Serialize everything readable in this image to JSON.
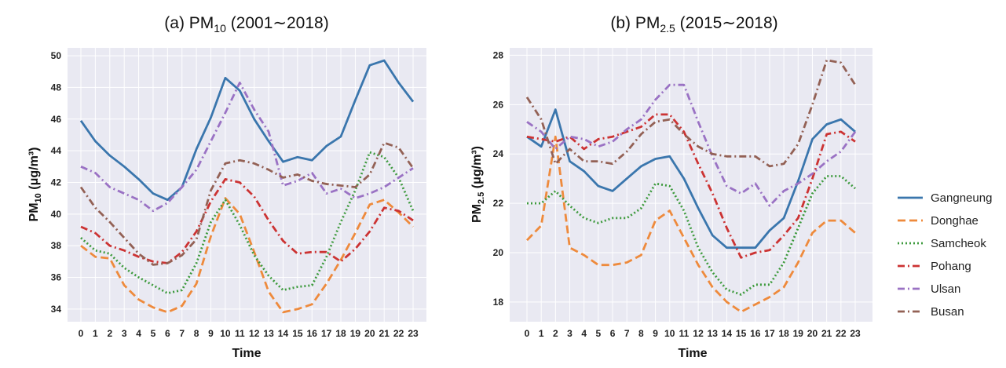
{
  "colors": {
    "Gangneung": "#3a76ad",
    "Donghae": "#ee8a3c",
    "Samcheok": "#3d9a3d",
    "Pohang": "#cc3333",
    "Ulsan": "#9a72c4",
    "Busan": "#936155",
    "plot_background": "#e9e9f2",
    "grid": "#ffffff"
  },
  "legend": {
    "placement": "right",
    "entries": [
      "Gangneung",
      "Donghae",
      "Samcheok",
      "Pohang",
      "Ulsan",
      "Busan"
    ],
    "line_styles": {
      "Gangneung": "solid",
      "Donghae": "dashed",
      "Samcheok": "dotted",
      "Pohang": "dashdot",
      "Ulsan": "dashdot",
      "Busan": "dashdot"
    }
  },
  "chart_data": [
    {
      "type": "line",
      "title_prefix": "(a) PM",
      "title_sub": "10",
      "title_suffix": " (2001∼2018)",
      "xlabel": "Time",
      "ylabel_prefix": "PM",
      "ylabel_sub": "10",
      "ylabel_suffix": " (μg/m³)",
      "x": [
        0,
        1,
        2,
        3,
        4,
        5,
        6,
        7,
        8,
        9,
        10,
        11,
        12,
        13,
        14,
        15,
        16,
        17,
        18,
        19,
        20,
        21,
        22,
        23
      ],
      "ylim": [
        33.2,
        50.5
      ],
      "yticks": [
        34,
        36,
        38,
        40,
        42,
        44,
        46,
        48,
        50
      ],
      "grid": true,
      "series": [
        {
          "name": "Gangneung",
          "values": [
            45.9,
            44.6,
            43.7,
            43.0,
            42.2,
            41.3,
            40.9,
            41.7,
            44.1,
            46.1,
            48.6,
            47.8,
            46.0,
            44.6,
            43.3,
            43.6,
            43.4,
            44.3,
            44.9,
            47.2,
            49.4,
            49.7,
            48.3,
            47.1
          ]
        },
        {
          "name": "Donghae",
          "values": [
            38.0,
            37.3,
            37.2,
            35.5,
            34.6,
            34.1,
            33.8,
            34.2,
            35.6,
            38.6,
            41.0,
            40.0,
            37.6,
            35.1,
            33.8,
            34.0,
            34.3,
            35.6,
            37.1,
            38.8,
            40.6,
            40.9,
            40.1,
            39.2
          ]
        },
        {
          "name": "Samcheok",
          "values": [
            38.5,
            37.7,
            37.5,
            36.6,
            36.0,
            35.5,
            35.0,
            35.2,
            36.9,
            39.5,
            40.9,
            39.3,
            37.4,
            36.1,
            35.2,
            35.4,
            35.5,
            37.3,
            39.5,
            41.5,
            43.9,
            43.6,
            42.3,
            40.2
          ]
        },
        {
          "name": "Pohang",
          "values": [
            39.2,
            38.8,
            38.0,
            37.7,
            37.3,
            37.0,
            36.9,
            37.6,
            38.9,
            40.8,
            42.2,
            42.0,
            41.1,
            39.6,
            38.3,
            37.5,
            37.6,
            37.6,
            37.0,
            37.8,
            38.9,
            40.4,
            40.2,
            39.6
          ]
        },
        {
          "name": "Ulsan",
          "values": [
            43.0,
            42.6,
            41.7,
            41.3,
            40.9,
            40.2,
            40.7,
            41.7,
            42.8,
            44.6,
            46.4,
            48.3,
            46.6,
            45.2,
            41.8,
            42.1,
            42.6,
            41.3,
            41.6,
            41.0,
            41.3,
            41.7,
            42.3,
            42.9
          ]
        },
        {
          "name": "Busan",
          "values": [
            41.7,
            40.4,
            39.5,
            38.5,
            37.5,
            36.8,
            36.9,
            37.4,
            38.4,
            41.5,
            43.2,
            43.4,
            43.2,
            42.8,
            42.3,
            42.5,
            42.1,
            41.9,
            41.8,
            41.7,
            42.5,
            44.5,
            44.2,
            42.9
          ]
        }
      ]
    },
    {
      "type": "line",
      "title_prefix": "(b) PM",
      "title_sub": "2.5",
      "title_suffix": " (2015∼2018)",
      "xlabel": "Time",
      "ylabel_prefix": "PM",
      "ylabel_sub": "2.5",
      "ylabel_suffix": " (μg/m³)",
      "x": [
        0,
        1,
        2,
        3,
        4,
        5,
        6,
        7,
        8,
        9,
        10,
        11,
        12,
        13,
        14,
        15,
        16,
        17,
        18,
        19,
        20,
        21,
        22,
        23
      ],
      "ylim": [
        17.2,
        28.3
      ],
      "yticks": [
        18,
        20,
        22,
        24,
        26,
        28
      ],
      "grid": true,
      "series": [
        {
          "name": "Gangneung",
          "values": [
            24.7,
            24.3,
            25.8,
            23.7,
            23.3,
            22.7,
            22.5,
            23.0,
            23.5,
            23.8,
            23.9,
            23.0,
            21.8,
            20.7,
            20.2,
            20.2,
            20.2,
            20.9,
            21.4,
            22.9,
            24.6,
            25.2,
            25.4,
            24.9
          ]
        },
        {
          "name": "Donghae",
          "values": [
            20.5,
            21.1,
            24.7,
            20.2,
            19.9,
            19.5,
            19.5,
            19.6,
            19.9,
            21.3,
            21.7,
            20.6,
            19.5,
            18.6,
            18.0,
            17.6,
            17.9,
            18.2,
            18.6,
            19.6,
            20.8,
            21.3,
            21.3,
            20.8
          ]
        },
        {
          "name": "Samcheok",
          "values": [
            22.0,
            22.0,
            22.5,
            21.9,
            21.4,
            21.2,
            21.4,
            21.4,
            21.8,
            22.8,
            22.7,
            21.7,
            20.2,
            19.2,
            18.5,
            18.3,
            18.7,
            18.7,
            19.6,
            21.0,
            22.4,
            23.1,
            23.1,
            22.6
          ]
        },
        {
          "name": "Pohang",
          "values": [
            24.7,
            24.6,
            24.5,
            24.7,
            24.2,
            24.6,
            24.7,
            24.9,
            25.1,
            25.6,
            25.6,
            24.9,
            23.6,
            22.4,
            21.0,
            19.8,
            20.0,
            20.1,
            20.7,
            21.4,
            23.0,
            24.8,
            24.9,
            24.5
          ]
        },
        {
          "name": "Ulsan",
          "values": [
            25.3,
            24.9,
            24.2,
            24.7,
            24.6,
            24.3,
            24.5,
            25.0,
            25.4,
            26.2,
            26.8,
            26.8,
            25.3,
            23.9,
            22.7,
            22.4,
            22.8,
            21.9,
            22.5,
            22.8,
            23.2,
            23.7,
            24.1,
            24.9
          ]
        },
        {
          "name": "Busan",
          "values": [
            26.3,
            25.4,
            23.6,
            24.2,
            23.7,
            23.7,
            23.6,
            24.1,
            24.8,
            25.3,
            25.4,
            24.8,
            24.3,
            24.0,
            23.9,
            23.9,
            23.9,
            23.5,
            23.6,
            24.4,
            26.0,
            27.8,
            27.7,
            26.8
          ]
        }
      ]
    }
  ]
}
